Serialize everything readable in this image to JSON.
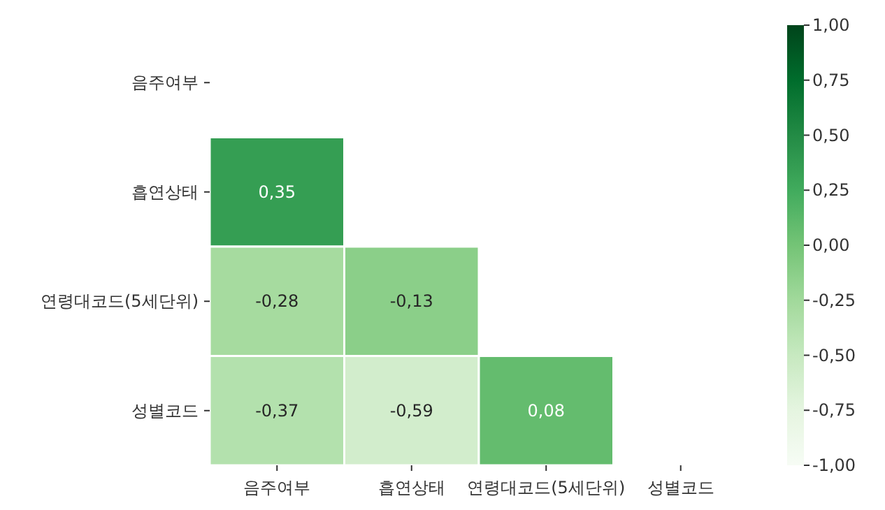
{
  "chart_data": {
    "type": "heatmap",
    "categories": [
      "음주여부",
      "흡연상태",
      "연령대코드(5세단위)",
      "성별코드"
    ],
    "y_categories": [
      "음주여부",
      "흡연상태",
      "연령대코드(5세단위)",
      "성별코드"
    ],
    "cells": [
      [
        null,
        null,
        null,
        null
      ],
      [
        0.35,
        null,
        null,
        null
      ],
      [
        -0.28,
        -0.13,
        null,
        null
      ],
      [
        -0.37,
        -0.59,
        0.08,
        null
      ]
    ],
    "cell_labels": [
      [
        null,
        null,
        null,
        null
      ],
      [
        "0,35",
        null,
        null,
        null
      ],
      [
        "-0,28",
        "-0,13",
        null,
        null
      ],
      [
        "-0,37",
        "-0,59",
        "0,08",
        null
      ]
    ],
    "clim": [
      -1,
      1
    ],
    "cticks": [
      {
        "value": 1,
        "label": "1,00"
      },
      {
        "value": 0.75,
        "label": "0,75"
      },
      {
        "value": 0.5,
        "label": "0,50"
      },
      {
        "value": 0.25,
        "label": "0,25"
      },
      {
        "value": 0,
        "label": "0,00"
      },
      {
        "value": -0.25,
        "label": "-0,25"
      },
      {
        "value": -0.5,
        "label": "-0,50"
      },
      {
        "value": -0.75,
        "label": "-0,75"
      },
      {
        "value": -1,
        "label": "-1,00"
      }
    ]
  }
}
